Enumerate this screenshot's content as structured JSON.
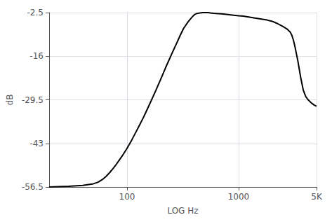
{
  "chart_data": {
    "type": "line",
    "xlabel": "LOG Hz",
    "ylabel": "dB",
    "log": "x",
    "grid": true,
    "color": "#000000",
    "xlim": [
      20,
      5000
    ],
    "ylim": [
      -56.5,
      -2.5
    ],
    "xticks": [
      100,
      1000,
      {
        "value": 5000,
        "label": "5K"
      }
    ],
    "yticks": [
      -56.5,
      -43,
      -29.5,
      -16,
      -2.5
    ],
    "x": [
      20,
      30,
      40,
      50,
      55,
      60,
      65,
      70,
      75,
      80,
      90,
      100,
      110,
      120,
      130,
      140,
      150,
      160,
      170,
      180,
      200,
      220,
      250,
      280,
      300,
      320,
      350,
      380,
      400,
      420,
      450,
      480,
      500,
      530,
      560,
      600,
      650,
      700,
      750,
      800,
      900,
      1000,
      1100,
      1200,
      1400,
      1600,
      1800,
      2000,
      2200,
      2500,
      2700,
      2900,
      3000,
      3100,
      3200,
      3400,
      3600,
      3800,
      4000,
      4200,
      4500,
      4800,
      5000
    ],
    "values": [
      -56.5,
      -56.3,
      -56.0,
      -55.5,
      -55.0,
      -54.2,
      -53.2,
      -52.0,
      -50.8,
      -49.5,
      -47.0,
      -44.5,
      -42.0,
      -39.5,
      -37.2,
      -35.0,
      -32.8,
      -30.7,
      -28.7,
      -26.8,
      -23.2,
      -19.8,
      -15.5,
      -11.8,
      -9.5,
      -7.5,
      -5.5,
      -4.0,
      -3.2,
      -2.8,
      -2.6,
      -2.5,
      -2.5,
      -2.5,
      -2.6,
      -2.7,
      -2.8,
      -2.9,
      -3.0,
      -3.1,
      -3.3,
      -3.5,
      -3.6,
      -3.8,
      -4.2,
      -4.5,
      -4.8,
      -5.2,
      -5.8,
      -6.8,
      -7.5,
      -8.5,
      -9.5,
      -11.0,
      -13.0,
      -17.5,
      -22.5,
      -26.5,
      -28.5,
      -29.5,
      -30.5,
      -31.2,
      -31.5
    ]
  }
}
